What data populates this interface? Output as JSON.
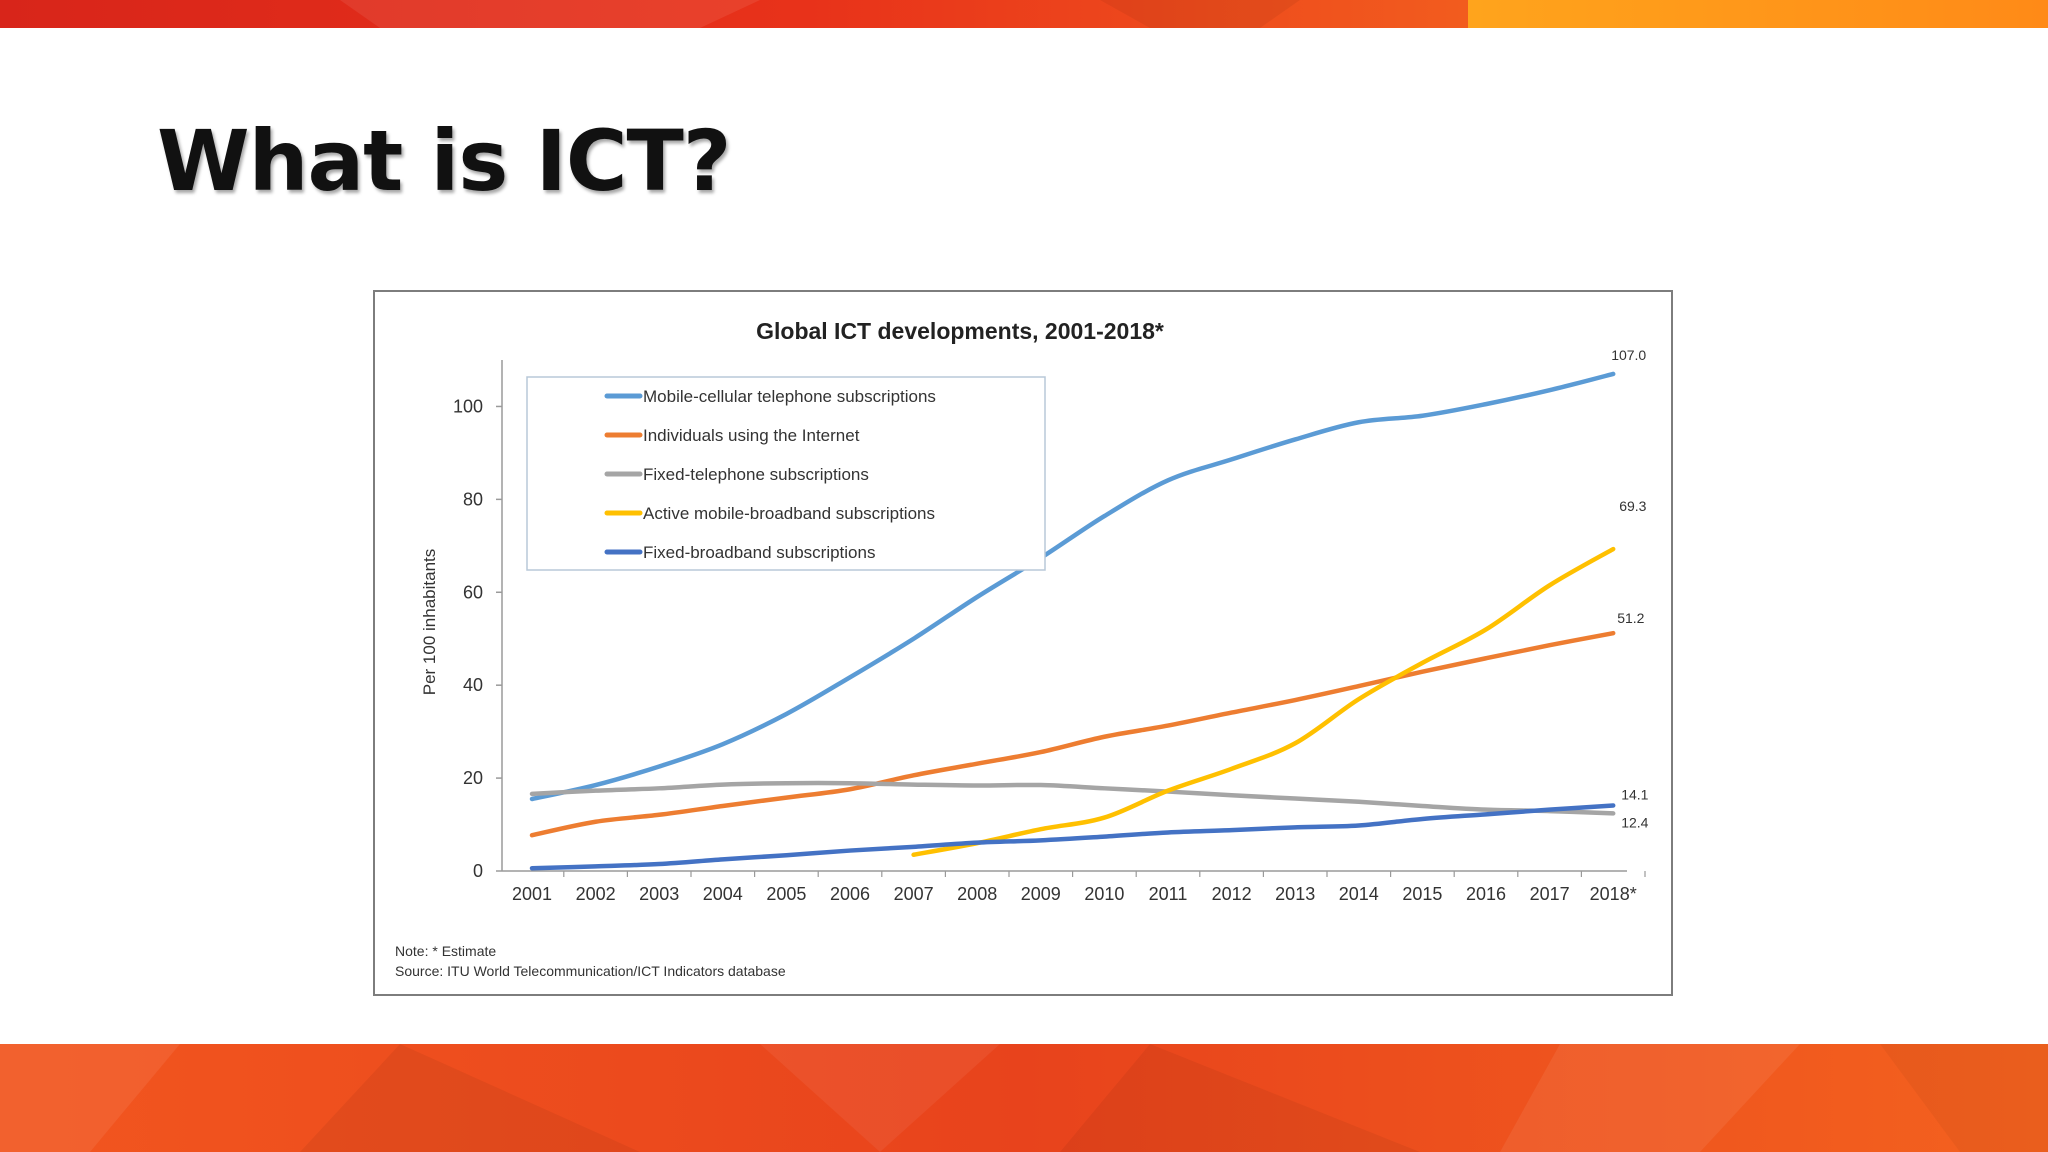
{
  "slide": {
    "title": "What is ICT?",
    "colors": {
      "band_top_left": "#dd2a12",
      "band_top_right": "#ff9419",
      "band_bottom": "#ea4a1f"
    }
  },
  "chart_data": {
    "type": "line",
    "title": "Global ICT developments, 2001-2018*",
    "xlabel": "",
    "ylabel": "Per 100 inhabitants",
    "ylim": [
      0,
      110
    ],
    "yticks": [
      0,
      20,
      40,
      60,
      80,
      100
    ],
    "categories": [
      "2001",
      "2002",
      "2003",
      "2004",
      "2005",
      "2006",
      "2007",
      "2008",
      "2009",
      "2010",
      "2011",
      "2012",
      "2013",
      "2014",
      "2015",
      "2016",
      "2017",
      "2018*"
    ],
    "legend_position": "top-left",
    "grid": false,
    "series": [
      {
        "name": "Mobile-cellular telephone subscriptions",
        "color": "#5b9bd5",
        "end_label": "107.0",
        "values": [
          15.5,
          18.5,
          22.5,
          27.3,
          33.8,
          41.7,
          50.0,
          59.0,
          67.4,
          76.4,
          84.1,
          88.6,
          92.9,
          96.6,
          98.0,
          100.5,
          103.5,
          107.0
        ]
      },
      {
        "name": "Individuals using the Internet",
        "color": "#ed7d31",
        "end_label": "51.2",
        "values": [
          7.7,
          10.6,
          12.1,
          14.0,
          15.8,
          17.6,
          20.6,
          23.1,
          25.6,
          28.9,
          31.3,
          34.1,
          36.8,
          39.8,
          42.9,
          45.8,
          48.6,
          51.2
        ]
      },
      {
        "name": "Fixed-telephone subscriptions",
        "color": "#a5a5a5",
        "end_label": "12.4",
        "values": [
          16.6,
          17.3,
          17.8,
          18.6,
          18.9,
          18.9,
          18.6,
          18.4,
          18.5,
          17.8,
          17.1,
          16.3,
          15.6,
          14.9,
          14.0,
          13.2,
          12.9,
          12.4
        ]
      },
      {
        "name": "Active mobile-broadband subscriptions",
        "color": "#ffc000",
        "end_label": "69.3",
        "values": [
          null,
          null,
          null,
          null,
          null,
          null,
          3.5,
          6.0,
          9.0,
          11.5,
          17.3,
          22.0,
          27.5,
          37.0,
          44.8,
          52.0,
          61.5,
          69.3
        ]
      },
      {
        "name": "Fixed-broadband subscriptions",
        "color": "#4472c4",
        "end_label": "14.1",
        "values": [
          0.6,
          1.0,
          1.5,
          2.5,
          3.4,
          4.4,
          5.2,
          6.1,
          6.6,
          7.4,
          8.3,
          8.8,
          9.4,
          9.8,
          11.2,
          12.2,
          13.2,
          14.1
        ]
      }
    ],
    "notes": [
      "Note: * Estimate",
      "Source:  ITU World Telecommunication/ICT Indicators database"
    ]
  }
}
